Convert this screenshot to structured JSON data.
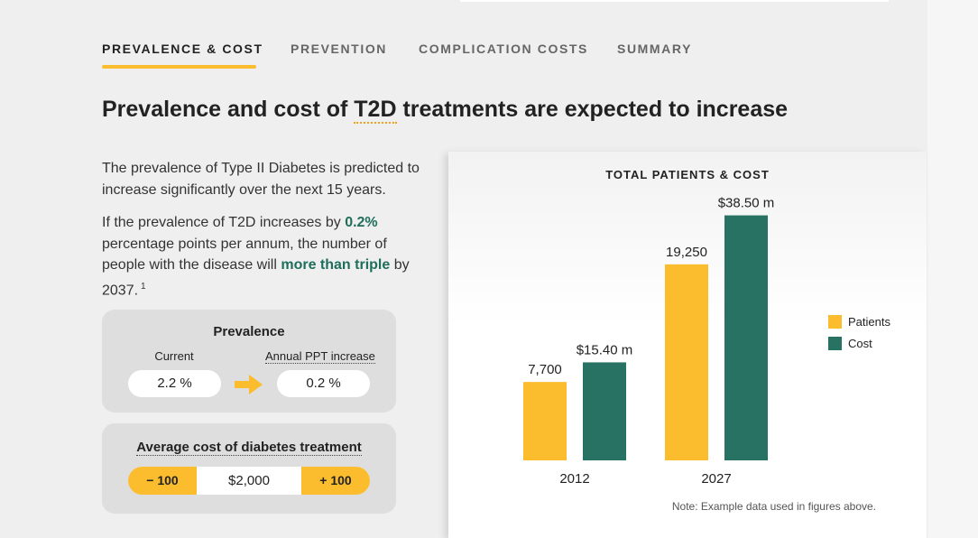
{
  "tabs": [
    "PREVALENCE & COST",
    "PREVENTION",
    "COMPLICATION COSTS",
    "SUMMARY"
  ],
  "heading": [
    "Prevalence and cost of ",
    "T2D",
    " treatments are expected to increase"
  ],
  "intro": "The prevalence of Type II Diabetes is predicted to increase significantly over the next 15 years.",
  "paragraph": [
    "If the prevalence of T2D increases by ",
    "0.2%",
    " percentage points per annum, the number of people with the disease will ",
    "more than triple",
    " by 2037.",
    "1"
  ],
  "prevalence": {
    "title": "Prevalence",
    "current_label": "Current",
    "current_value": "2.2 %",
    "increase_label": "Annual PPT increase",
    "increase_value": "0.2 %"
  },
  "cost": {
    "title": "Average cost of diabetes treatment",
    "decrease": "− 100",
    "value": "$2,000",
    "increase": "+ 100"
  },
  "chart_data": {
    "type": "bar",
    "title": "TOTAL PATIENTS & COST",
    "categories": [
      "2012",
      "2027"
    ],
    "series": [
      {
        "name": "Patients",
        "color": "#fbbd2e",
        "values": [
          7700,
          19250
        ],
        "value_labels": [
          "7,700",
          "19,250"
        ]
      },
      {
        "name": "Cost",
        "color": "#277262",
        "values": [
          15.4,
          38.5
        ],
        "value_labels": [
          "$15.40 m",
          "$38.50 m"
        ],
        "axis": "y2"
      }
    ],
    "ylim": [
      0,
      25000
    ],
    "y2lim": [
      0,
      40
    ],
    "legend": "right",
    "note": "Note: Example data used in figures above."
  }
}
